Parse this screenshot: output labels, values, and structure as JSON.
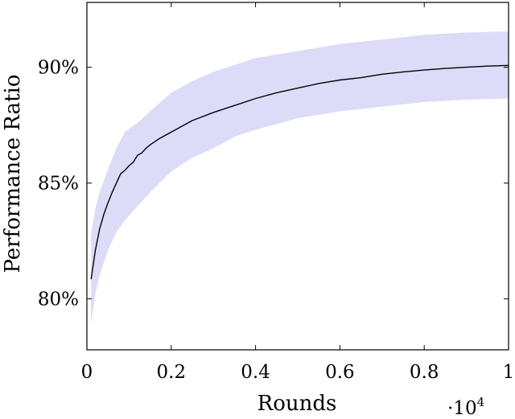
{
  "chart_data": {
    "type": "line",
    "title": "",
    "xlabel": "Rounds",
    "ylabel": "Performance Ratio",
    "x_multiplier_label": "·10",
    "x_multiplier_exponent": "4",
    "xlim": [
      0,
      1
    ],
    "ylim": [
      77.8,
      92.8
    ],
    "x_ticks": [
      0,
      0.2,
      0.4,
      0.6,
      0.8,
      1
    ],
    "x_tick_labels": [
      "0",
      "0.2",
      "0.4",
      "0.6",
      "0.8",
      "1"
    ],
    "y_ticks": [
      80,
      85,
      90
    ],
    "y_tick_labels": [
      "80%",
      "85%",
      "90%"
    ],
    "grid": false,
    "colors": {
      "line": "#000000",
      "band": "#dcdcf8"
    },
    "series": [
      {
        "x": [
          0.01,
          0.02,
          0.03,
          0.04,
          0.05,
          0.06,
          0.07,
          0.08,
          0.09,
          0.1,
          0.11,
          0.12,
          0.13,
          0.14,
          0.15,
          0.17,
          0.2,
          0.25,
          0.3,
          0.35,
          0.4,
          0.45,
          0.5,
          0.55,
          0.6,
          0.65,
          0.7,
          0.75,
          0.8,
          0.85,
          0.9,
          0.95,
          1.0
        ],
        "y": [
          80.85,
          82.1,
          83.0,
          83.65,
          84.15,
          84.6,
          85.0,
          85.4,
          85.55,
          85.75,
          85.9,
          86.2,
          86.3,
          86.5,
          86.65,
          86.9,
          87.2,
          87.7,
          88.05,
          88.35,
          88.65,
          88.9,
          89.1,
          89.3,
          89.45,
          89.55,
          89.7,
          89.8,
          89.88,
          89.95,
          90.0,
          90.05,
          90.08
        ]
      }
    ],
    "band": {
      "x": [
        0.01,
        0.02,
        0.03,
        0.05,
        0.07,
        0.09,
        0.12,
        0.15,
        0.2,
        0.25,
        0.3,
        0.35,
        0.4,
        0.5,
        0.6,
        0.7,
        0.8,
        0.9,
        1.0
      ],
      "upper": [
        82.8,
        83.9,
        84.6,
        85.6,
        86.5,
        87.2,
        87.6,
        88.1,
        88.9,
        89.4,
        89.8,
        90.1,
        90.4,
        90.7,
        91.0,
        91.2,
        91.4,
        91.5,
        91.55
      ],
      "lower": [
        78.9,
        80.2,
        81.0,
        82.1,
        82.9,
        83.4,
        84.0,
        84.6,
        85.5,
        86.1,
        86.5,
        87.0,
        87.3,
        87.8,
        88.1,
        88.3,
        88.5,
        88.6,
        88.65
      ]
    }
  }
}
